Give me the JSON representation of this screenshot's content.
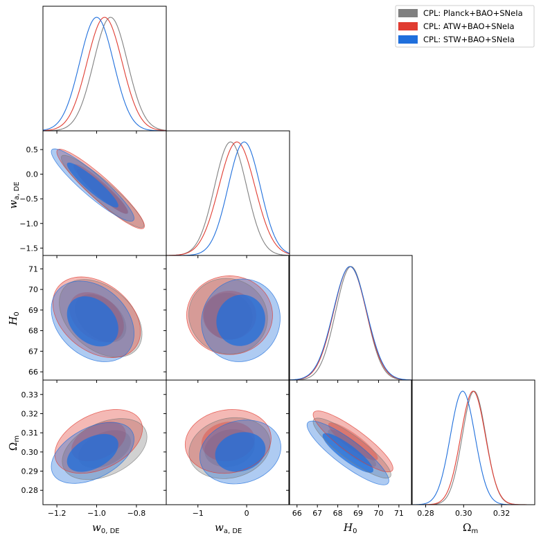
{
  "colors": {
    "planck": "#808080",
    "atw": "#e03c31",
    "stw": "#1f6fdc"
  },
  "chart_data": {
    "type": "triangle",
    "title": "",
    "legend_position": "top-right",
    "series": [
      {
        "key": "planck",
        "name": "CPL: Planck+BAO+SNeIa"
      },
      {
        "key": "atw",
        "name": "CPL: ATW+BAO+SNeIa"
      },
      {
        "key": "stw",
        "name": "CPL: STW+BAO+SNeIa"
      }
    ],
    "parameters": [
      {
        "key": "w0",
        "label_main": "w",
        "label_sub": "0, DE",
        "range": [
          -1.27,
          -0.65
        ],
        "ticks": [
          -1.2,
          -1.0,
          -0.8
        ],
        "tick_labels": [
          "−1.2",
          "−1.0",
          "−0.8"
        ]
      },
      {
        "key": "wa",
        "label_main": "w",
        "label_sub": "a, DE",
        "range": [
          -1.65,
          0.88
        ],
        "ticks": [
          -1,
          0
        ],
        "tick_labels": [
          "−1",
          "0"
        ],
        "yticks": [
          0.5,
          0.0,
          -0.5,
          -1.0,
          -1.5
        ],
        "ytick_labels": [
          "0.5",
          "0.0",
          "−0.5",
          "−1.0",
          "−1.5"
        ]
      },
      {
        "key": "H0",
        "label_main": "H",
        "label_sub": "0",
        "range": [
          65.6,
          71.65
        ],
        "ticks": [
          66,
          67,
          68,
          69,
          70,
          71
        ],
        "tick_labels": [
          "66",
          "67",
          "68",
          "69",
          "70",
          "71"
        ]
      },
      {
        "key": "Om",
        "label_main": "Ω",
        "label_sub": "m",
        "range": [
          0.2725,
          0.3375
        ],
        "ticks": [
          0.28,
          0.3,
          0.32
        ],
        "tick_labels": [
          "0.28",
          "0.30",
          "0.32"
        ],
        "yticks": [
          0.28,
          0.29,
          0.3,
          0.31,
          0.32,
          0.33
        ],
        "ytick_labels": [
          "0.28",
          "0.29",
          "0.30",
          "0.31",
          "0.32",
          "0.33"
        ]
      }
    ],
    "marginals": {
      "w0": {
        "planck": {
          "mean": -0.93,
          "sigma": 0.085
        },
        "atw": {
          "mean": -0.96,
          "sigma": 0.088
        },
        "stw": {
          "mean": -1.0,
          "sigma": 0.085
        }
      },
      "wa": {
        "planck": {
          "mean": -0.33,
          "sigma": 0.33
        },
        "atw": {
          "mean": -0.2,
          "sigma": 0.37
        },
        "stw": {
          "mean": -0.05,
          "sigma": 0.33
        }
      },
      "H0": {
        "planck": {
          "mean": 68.65,
          "sigma": 0.75
        },
        "atw": {
          "mean": 68.6,
          "sigma": 0.8
        },
        "stw": {
          "mean": 68.6,
          "sigma": 0.82
        }
      },
      "Om": {
        "planck": {
          "mean": 0.3055,
          "sigma": 0.0062
        },
        "atw": {
          "mean": 0.305,
          "sigma": 0.0065
        },
        "stw": {
          "mean": 0.2995,
          "sigma": 0.0065
        }
      }
    },
    "contours_2d": {
      "wa_w0": {
        "planck": {
          "center": [
            -0.97,
            -0.35
          ],
          "sigmas": [
            0.085,
            0.3
          ],
          "rho": -0.93
        },
        "atw": {
          "center": [
            -0.98,
            -0.3
          ],
          "sigmas": [
            0.09,
            0.33
          ],
          "rho": -0.93
        },
        "stw": {
          "center": [
            -1.02,
            -0.22
          ],
          "sigmas": [
            0.085,
            0.3
          ],
          "rho": -0.92
        }
      },
      "H0_w0": {
        "planck": {
          "center": [
            -0.98,
            68.6
          ],
          "sigmas": [
            0.085,
            0.77
          ],
          "rho": -0.4
        },
        "atw": {
          "center": [
            -1.0,
            68.65
          ],
          "sigmas": [
            0.09,
            0.8
          ],
          "rho": -0.35
        },
        "stw": {
          "center": [
            -1.02,
            68.45
          ],
          "sigmas": [
            0.085,
            0.8
          ],
          "rho": -0.3
        }
      },
      "H0_wa": {
        "planck": {
          "center": [
            -0.38,
            68.7
          ],
          "sigmas": [
            0.33,
            0.75
          ],
          "rho": -0.05
        },
        "atw": {
          "center": [
            -0.35,
            68.75
          ],
          "sigmas": [
            0.36,
            0.78
          ],
          "rho": 0.0
        },
        "stw": {
          "center": [
            -0.12,
            68.5
          ],
          "sigmas": [
            0.33,
            0.82
          ],
          "rho": 0.05
        }
      },
      "Om_w0": {
        "planck": {
          "center": [
            -0.96,
            0.3015
          ],
          "sigmas": [
            0.087,
            0.0065
          ],
          "rho": 0.4
        },
        "atw": {
          "center": [
            -0.99,
            0.3055
          ],
          "sigmas": [
            0.09,
            0.0068
          ],
          "rho": 0.4
        },
        "stw": {
          "center": [
            -1.02,
            0.2995
          ],
          "sigmas": [
            0.085,
            0.0065
          ],
          "rho": 0.45
        }
      },
      "Om_wa": {
        "planck": {
          "center": [
            -0.35,
            0.302
          ],
          "sigmas": [
            0.34,
            0.0065
          ],
          "rho": 0.15
        },
        "atw": {
          "center": [
            -0.38,
            0.3055
          ],
          "sigmas": [
            0.36,
            0.0068
          ],
          "rho": 0.1
        },
        "stw": {
          "center": [
            -0.13,
            0.3
          ],
          "sigmas": [
            0.34,
            0.0068
          ],
          "rho": 0.15
        }
      },
      "Om_H0": {
        "planck": {
          "center": [
            68.7,
            0.302
          ],
          "sigmas": [
            0.78,
            0.0064
          ],
          "rho": -0.88
        },
        "atw": {
          "center": [
            68.75,
            0.3055
          ],
          "sigmas": [
            0.8,
            0.0065
          ],
          "rho": -0.88
        },
        "stw": {
          "center": [
            68.5,
            0.2995
          ],
          "sigmas": [
            0.82,
            0.0068
          ],
          "rho": -0.87
        }
      }
    },
    "contour_levels": [
      "68%",
      "95%"
    ]
  }
}
